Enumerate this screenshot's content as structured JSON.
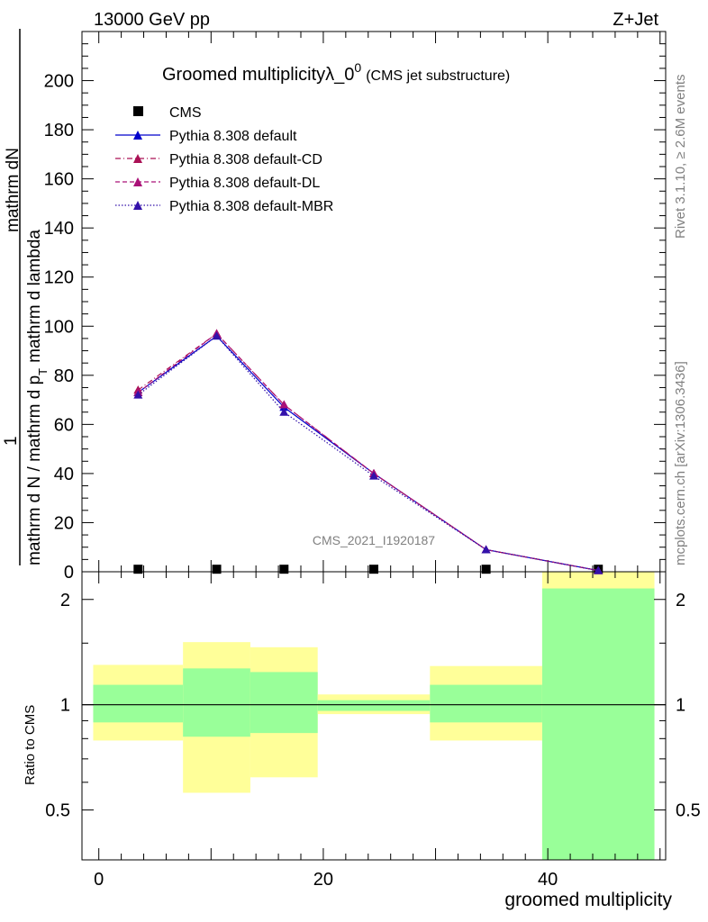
{
  "header": {
    "left": "13000 GeV pp",
    "right": "Z+Jet"
  },
  "side_labels": {
    "top": "Rivet 3.1.10, ≥ 2.6M events",
    "bottom": "mcplots.cern.ch [arXiv:1306.3436]"
  },
  "watermark": "CMS_2021_I1920187",
  "title": {
    "main": "Groomed multiplicityλ_0",
    "sup": "0",
    "sub": "(CMS jet substructure)"
  },
  "y_label": {
    "numerator": "mathrm dN",
    "denominator": "mathrm d p",
    "prefix": "1",
    "lower": "mathrm d N / mathrm d p",
    "sub": "T",
    "lambda": "mathrm d lambda"
  },
  "ratio_label": "Ratio to CMS",
  "x_label": "groomed multiplicity",
  "colors": {
    "cms": "#000000",
    "default": "#0000cc",
    "cd": "#aa1155",
    "dl": "#aa1177",
    "mbr": "#3311aa",
    "band_outer": "#ffff99",
    "band_inner": "#99ff99"
  },
  "chart_data": [
    {
      "type": "line",
      "title": "Groomed multiplicityλ_0^0 (CMS jet substructure)",
      "ylim": [
        0,
        220
      ],
      "yticks": [
        "0",
        "20",
        "40",
        "60",
        "80",
        "100",
        "120",
        "140",
        "160",
        "180",
        "200"
      ],
      "x": [
        3.5,
        10.5,
        16.5,
        24.5,
        34.5,
        44.5
      ],
      "series": [
        {
          "name": "CMS",
          "values": [
            0.3,
            0.3,
            0.3,
            0.3,
            0.3,
            0.3
          ],
          "marker": "square"
        },
        {
          "name": "Pythia 8.308 default",
          "values": [
            73,
            96,
            67,
            40,
            9,
            0.5
          ],
          "style": "solid"
        },
        {
          "name": "Pythia 8.308 default-CD",
          "values": [
            74,
            97,
            68,
            40,
            9,
            0.5
          ],
          "style": "dashdot"
        },
        {
          "name": "Pythia 8.308 default-DL",
          "values": [
            73,
            97,
            68,
            40,
            9,
            0.5
          ],
          "style": "dashed"
        },
        {
          "name": "Pythia 8.308 default-MBR",
          "values": [
            72,
            96,
            65,
            39,
            9,
            0.5
          ],
          "style": "dotted"
        }
      ]
    },
    {
      "type": "area",
      "ylabel": "Ratio to CMS",
      "xlabel": "groomed multiplicity",
      "xlim": [
        -1.5,
        50.5
      ],
      "xticks": [
        "0",
        "20",
        "40"
      ],
      "yticks": [
        "0.5",
        "1",
        "2"
      ],
      "ylim": [
        0.36,
        2.4
      ],
      "y_scale": "log",
      "bins": [
        {
          "x0": -0.5,
          "x1": 7.5,
          "outer": [
            0.79,
            1.3
          ],
          "inner": [
            0.89,
            1.14
          ]
        },
        {
          "x0": 7.5,
          "x1": 13.5,
          "outer": [
            0.56,
            1.51
          ],
          "inner": [
            0.81,
            1.27
          ]
        },
        {
          "x0": 13.5,
          "x1": 19.5,
          "outer": [
            0.62,
            1.46
          ],
          "inner": [
            0.83,
            1.24
          ]
        },
        {
          "x0": 19.5,
          "x1": 29.5,
          "outer": [
            0.94,
            1.07
          ],
          "inner": [
            0.96,
            1.03
          ]
        },
        {
          "x0": 29.5,
          "x1": 39.5,
          "outer": [
            0.79,
            1.29
          ],
          "inner": [
            0.89,
            1.14
          ]
        },
        {
          "x0": 39.5,
          "x1": 49.5,
          "outer": [
            0.36,
            2.4
          ],
          "inner": [
            0.36,
            2.15
          ]
        }
      ]
    }
  ]
}
